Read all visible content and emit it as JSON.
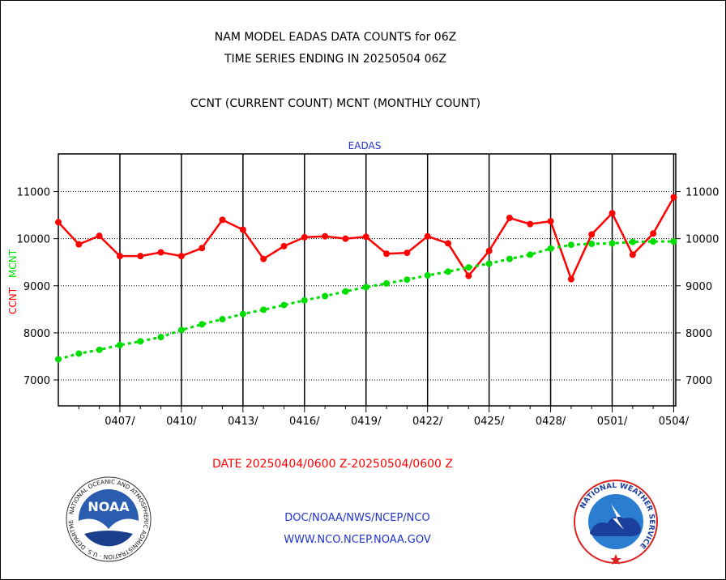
{
  "header": {
    "title_line1": "NAM MODEL EADAS DATA COUNTS for 06Z",
    "title_line2": "TIME SERIES ENDING IN 20250504 06Z",
    "subtitle": "CCNT (CURRENT COUNT) MCNT (MONTHLY COUNT)"
  },
  "footer": {
    "date_range": "DATE 20250404/0600 Z-20250504/0600 Z",
    "link1": "DOC/NOAA/NWS/NCEP/NCO",
    "link2": "WWW.NCO.NCEP.NOAA.GOV"
  },
  "logos": {
    "noaa_text": "NOAA",
    "noaa_ring": "NATIONAL OCEANIC AND ATMOSPHERIC ADMINISTRATION · U.S. DEPARTMENT OF COMMERCE",
    "nws_ring": "NATIONAL WEATHER SERVICE"
  },
  "colors": {
    "ccnt": "#ff0000",
    "mcnt": "#00dd00",
    "plot_title": "#2233cc",
    "grid": "#000000"
  },
  "chart_data": {
    "type": "line",
    "plot_title": "EADAS",
    "ylabel_ccnt": "CCNT",
    "ylabel_mcnt": "MCNT",
    "ylim": [
      6450,
      11800
    ],
    "yticks": [
      7000,
      8000,
      9000,
      10000,
      11000
    ],
    "xlim": [
      0,
      30.1
    ],
    "x_ticks": [
      {
        "x": 3,
        "label": "0407/"
      },
      {
        "x": 6,
        "label": "0410/"
      },
      {
        "x": 9,
        "label": "0413/"
      },
      {
        "x": 12,
        "label": "0416/"
      },
      {
        "x": 15,
        "label": "0419/"
      },
      {
        "x": 18,
        "label": "0422/"
      },
      {
        "x": 21,
        "label": "0425/"
      },
      {
        "x": 24,
        "label": "0428/"
      },
      {
        "x": 27,
        "label": "0501/"
      },
      {
        "x": 30,
        "label": "0504/"
      }
    ],
    "grid": true,
    "series": [
      {
        "name": "CCNT",
        "color": "#ff0000",
        "values": [
          10350,
          9880,
          10060,
          9630,
          9630,
          9710,
          9630,
          9800,
          10400,
          10190,
          9570,
          9840,
          10030,
          10050,
          10000,
          10040,
          9680,
          9700,
          10050,
          9900,
          9210,
          9740,
          10440,
          10310,
          10370,
          9140,
          10090,
          10540,
          9660,
          10110,
          10880
        ]
      },
      {
        "name": "MCNT",
        "color": "#00dd00",
        "values": [
          7440,
          7560,
          7640,
          7740,
          7820,
          7910,
          8060,
          8180,
          8290,
          8400,
          8490,
          8590,
          8690,
          8780,
          8880,
          8970,
          9050,
          9130,
          9220,
          9300,
          9390,
          9470,
          9570,
          9660,
          9790,
          9870,
          9890,
          9900,
          9930,
          9940,
          9940
        ]
      }
    ]
  }
}
